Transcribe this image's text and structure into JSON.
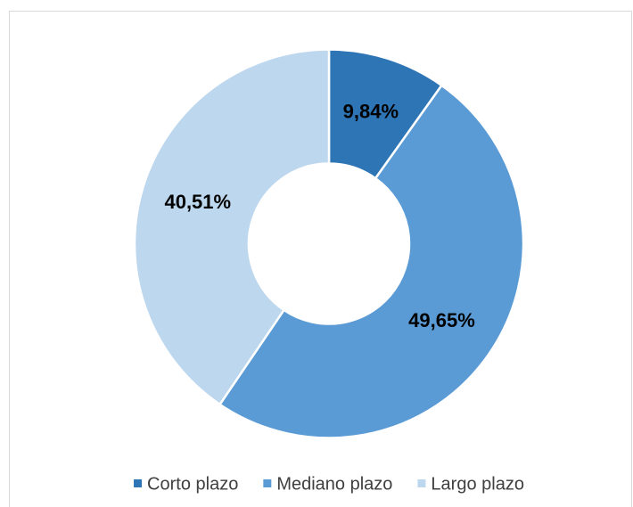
{
  "chart_data": {
    "type": "donut",
    "categories": [
      "Corto plazo",
      "Mediano plazo",
      "Largo plazo"
    ],
    "values": [
      9.84,
      49.65,
      40.51
    ],
    "value_labels": [
      "9,84%",
      "49,65%",
      "40,51%"
    ],
    "colors": [
      "#2e75b6",
      "#5b9bd5",
      "#bdd7ee"
    ],
    "legend": "bottom"
  }
}
